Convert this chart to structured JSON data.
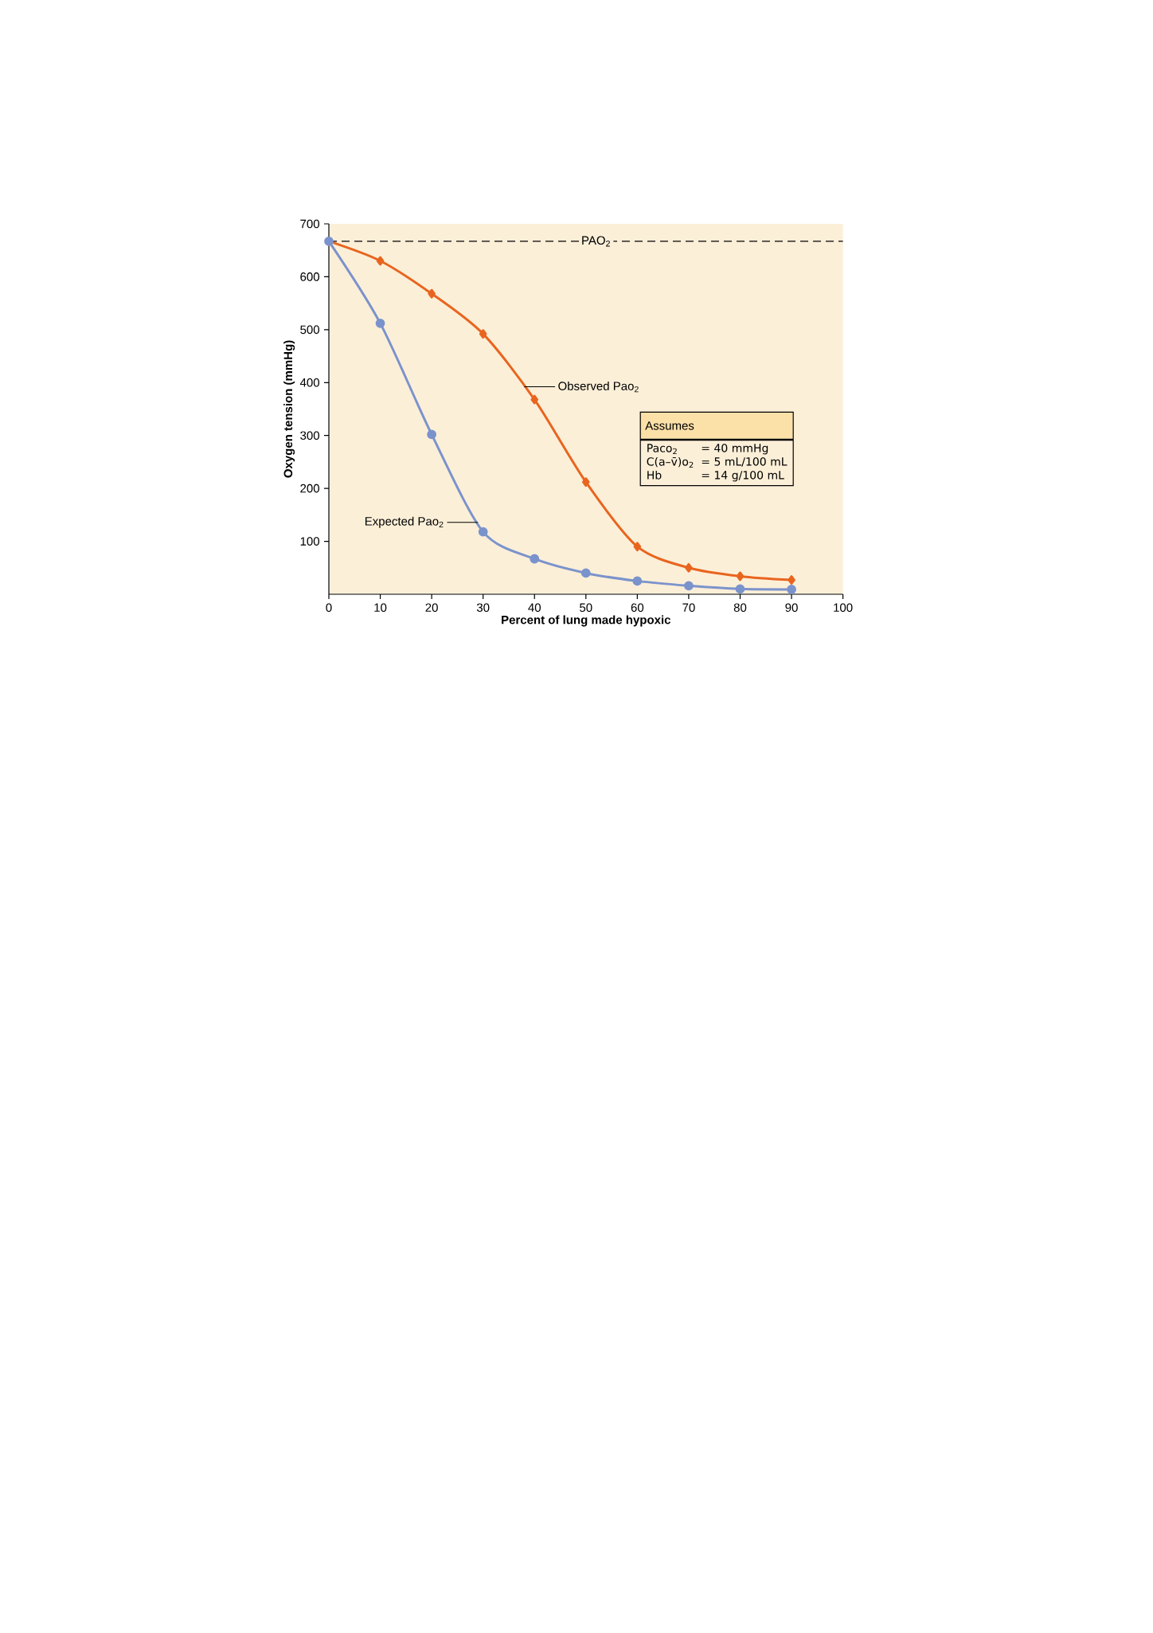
{
  "chart_data": {
    "type": "line",
    "xlabel": "Percent of lung made hypoxic",
    "ylabel": "Oxygen tension (mmHg)",
    "x": [
      0,
      10,
      20,
      30,
      40,
      50,
      60,
      70,
      80,
      90
    ],
    "series": [
      {
        "color": "#e8651f",
        "marker": "diamond",
        "values": [
          667,
          630,
          568,
          492,
          368,
          212,
          90,
          50,
          34,
          27
        ]
      },
      {
        "color": "#7b93cc",
        "marker": "circle",
        "values": [
          667,
          512,
          302,
          118,
          67,
          40,
          25,
          16,
          10,
          9
        ]
      }
    ],
    "xlim": [
      0,
      100
    ],
    "xticks": [
      0,
      10,
      20,
      30,
      40,
      50,
      60,
      70,
      80,
      90,
      100
    ],
    "ylim": [
      0,
      700
    ],
    "yticks": [
      100,
      200,
      300,
      400,
      500,
      600,
      700
    ],
    "ref_lines": [
      {
        "axis": "y",
        "value": 667,
        "label": "PAO$_{2}$",
        "line_style": "dashed",
        "color": "#000000"
      }
    ],
    "annotations": [
      {
        "text": "Observed Pao$_{2}$",
        "x": 38,
        "y": 392
      },
      {
        "text": "Expected Pao$_{2}$",
        "x": 29,
        "y": 136
      },
      "Assumes",
      "Paco$_{2}$",
      "= 40 mmHg",
      "C(a–v̄)o$_{2}$",
      "= 5 mL/100 mL",
      "Hb",
      "= 14 g/100 mL"
    ],
    "grid": false
  }
}
